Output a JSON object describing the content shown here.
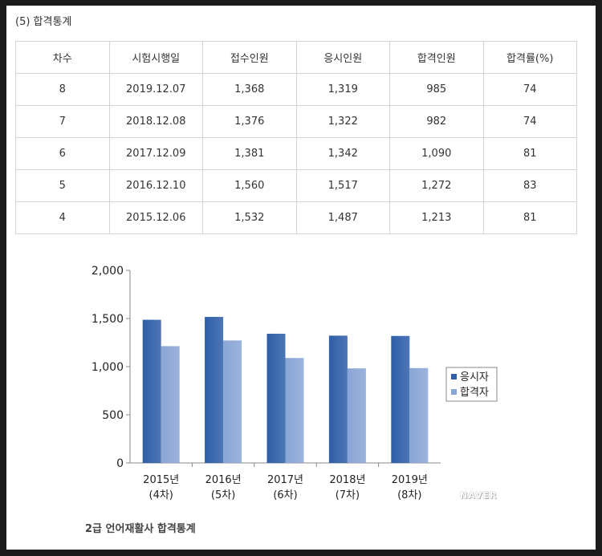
{
  "section_title": "(5) 합격통계",
  "table": {
    "headers": [
      "차수",
      "시험시행일",
      "접수인원",
      "응시인원",
      "합격인원",
      "합격률(%)"
    ],
    "rows": [
      [
        "8",
        "2019.12.07",
        "1,368",
        "1,319",
        "985",
        "74"
      ],
      [
        "7",
        "2018.12.08",
        "1,376",
        "1,322",
        "982",
        "74"
      ],
      [
        "6",
        "2017.12.09",
        "1,381",
        "1,342",
        "1,090",
        "81"
      ],
      [
        "5",
        "2016.12.10",
        "1,560",
        "1,517",
        "1,272",
        "83"
      ],
      [
        "4",
        "2015.12.06",
        "1,532",
        "1,487",
        "1,213",
        "81"
      ]
    ]
  },
  "chart_data": {
    "type": "bar",
    "categories": [
      [
        "2015년",
        "(4차)"
      ],
      [
        "2016년",
        "(5차)"
      ],
      [
        "2017년",
        "(6차)"
      ],
      [
        "2018년",
        "(7차)"
      ],
      [
        "2019년",
        "(8차)"
      ]
    ],
    "series": [
      {
        "name": "응시자",
        "values": [
          1487,
          1517,
          1342,
          1322,
          1319
        ],
        "color": "#2e5ea8"
      },
      {
        "name": "합격자",
        "values": [
          1213,
          1272,
          1090,
          982,
          985
        ],
        "color": "#8aa6d6"
      }
    ],
    "yticks": [
      "0",
      "500",
      "1,000",
      "1,500",
      "2,000"
    ],
    "ylim": [
      0,
      2000
    ],
    "grid": false,
    "legend": "right"
  },
  "watermark": "NAVER",
  "caption": "2급 언어재활사 합격통계"
}
